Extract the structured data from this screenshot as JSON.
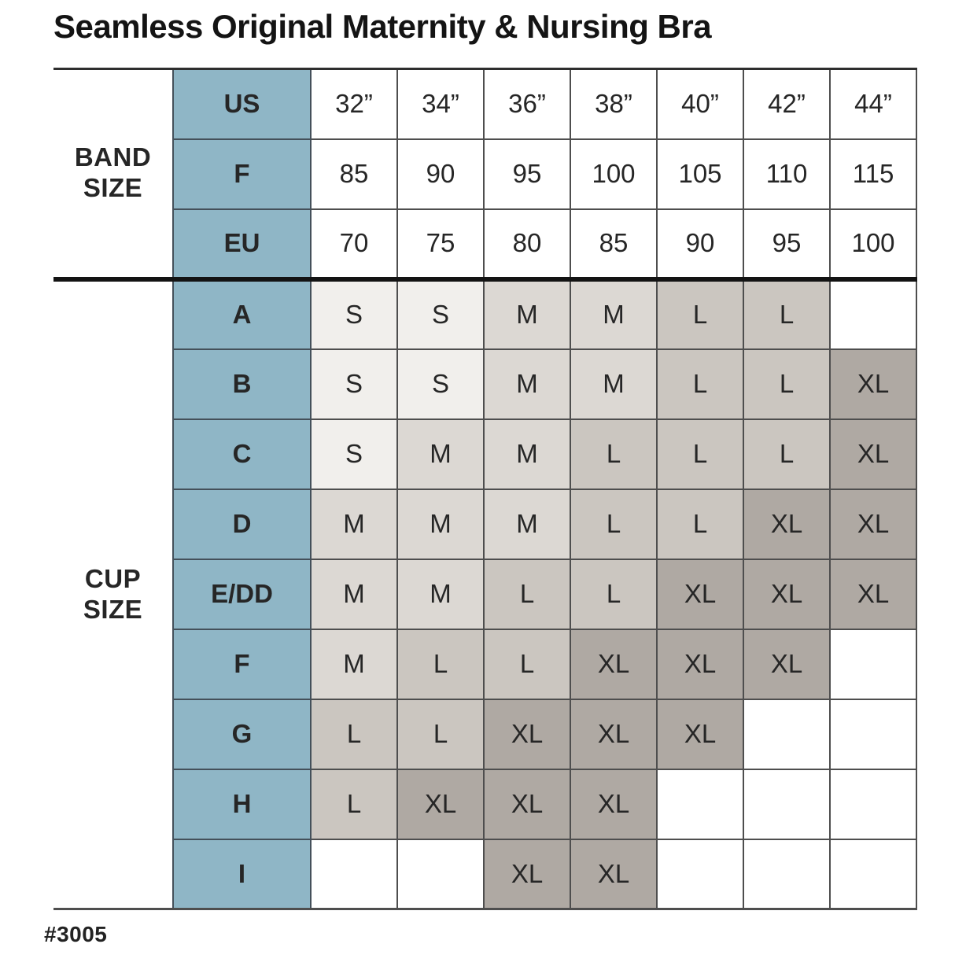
{
  "title": "Seamless Original Maternity & Nursing Bra",
  "footer": {
    "sku": "#3005"
  },
  "colors": {
    "label_column_blue": "#8fb6c6",
    "label_text": "#1b2833",
    "grid_line": "#4e4e4e",
    "section_divider": "#131313",
    "size_S": "#f1efec",
    "size_M": "#dcd8d3",
    "size_L": "#cbc6c0",
    "size_XL": "#afa9a3",
    "empty_cell": "#ffffff"
  },
  "chart_data": {
    "type": "table",
    "title": "Seamless Original Maternity & Nursing Bra",
    "band_section_label": "BAND SIZE",
    "cup_section_label": "CUP SIZE",
    "band_rows": [
      {
        "label": "US",
        "values": [
          "32”",
          "34”",
          "36”",
          "38”",
          "40”",
          "42”",
          "44”"
        ]
      },
      {
        "label": "F",
        "values": [
          "85",
          "90",
          "95",
          "100",
          "105",
          "110",
          "115"
        ]
      },
      {
        "label": "EU",
        "values": [
          "70",
          "75",
          "80",
          "85",
          "90",
          "95",
          "100"
        ]
      }
    ],
    "cup_rows": [
      {
        "label": "A",
        "values": [
          "S",
          "S",
          "M",
          "M",
          "L",
          "L",
          ""
        ]
      },
      {
        "label": "B",
        "values": [
          "S",
          "S",
          "M",
          "M",
          "L",
          "L",
          "XL"
        ]
      },
      {
        "label": "C",
        "values": [
          "S",
          "M",
          "M",
          "L",
          "L",
          "L",
          "XL"
        ]
      },
      {
        "label": "D",
        "values": [
          "M",
          "M",
          "M",
          "L",
          "L",
          "XL",
          "XL"
        ]
      },
      {
        "label": "E/DD",
        "values": [
          "M",
          "M",
          "L",
          "L",
          "XL",
          "XL",
          "XL"
        ]
      },
      {
        "label": "F",
        "values": [
          "M",
          "L",
          "L",
          "XL",
          "XL",
          "XL",
          ""
        ]
      },
      {
        "label": "G",
        "values": [
          "L",
          "L",
          "XL",
          "XL",
          "XL",
          "",
          ""
        ]
      },
      {
        "label": "H",
        "values": [
          "L",
          "XL",
          "XL",
          "XL",
          "",
          "",
          ""
        ]
      },
      {
        "label": "I",
        "values": [
          "",
          "",
          "XL",
          "XL",
          "",
          "",
          ""
        ]
      }
    ]
  }
}
